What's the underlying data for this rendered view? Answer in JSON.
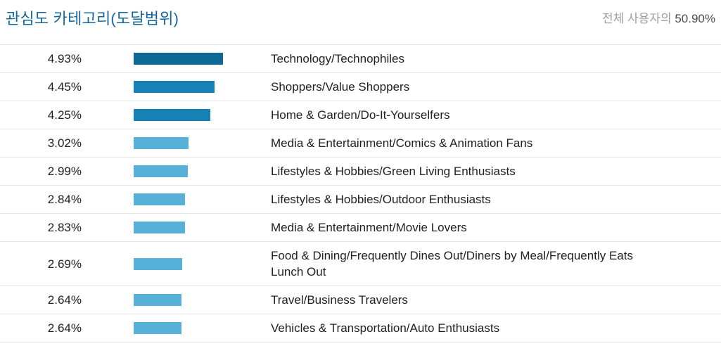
{
  "header": {
    "title": "관심도 카테고리(도달범위)",
    "reach_prefix": "전체 사용자의",
    "reach_value": "50.90%"
  },
  "colors": {
    "title_blue": "#15679e",
    "reach_prefix_gray": "#9e9e9e",
    "reach_value_gray": "#4d4d4d",
    "row_text": "#212121",
    "divider": "#e6e6e6",
    "bar_dark": "#0e6a94",
    "bar_medium": "#1681b4",
    "bar_light": "#56b0d7"
  },
  "chart_data": {
    "type": "bar",
    "orientation": "horizontal",
    "title": "관심도 카테고리(도달범위)",
    "subtitle_label": "전체 사용자의",
    "subtitle_value": "50.90%",
    "legend": "none",
    "grid": false,
    "value_label_position": "left-of-bar",
    "category_label_position": "right-of-bar",
    "xlim": [
      0,
      4.93
    ],
    "categories": [
      "Technology/Technophiles",
      "Shoppers/Value Shoppers",
      "Home & Garden/Do-It-Yourselfers",
      "Media & Entertainment/Comics & Animation Fans",
      "Lifestyles & Hobbies/Green Living Enthusiasts",
      "Lifestyles & Hobbies/Outdoor Enthusiasts",
      "Media & Entertainment/Movie Lovers",
      "Food & Dining/Frequently Dines Out/Diners by Meal/Frequently Eats Lunch Out",
      "Travel/Business Travelers",
      "Vehicles & Transportation/Auto Enthusiasts"
    ],
    "values": [
      4.93,
      4.45,
      4.25,
      3.02,
      2.99,
      2.84,
      2.83,
      2.69,
      2.64,
      2.64
    ],
    "value_labels": [
      "4.93%",
      "4.45%",
      "4.25%",
      "3.02%",
      "2.99%",
      "2.84%",
      "2.83%",
      "2.69%",
      "2.64%",
      "2.64%"
    ],
    "bar_colors": [
      "#0e6a94",
      "#1681b4",
      "#1681b4",
      "#56b0d7",
      "#56b0d7",
      "#56b0d7",
      "#56b0d7",
      "#56b0d7",
      "#56b0d7",
      "#56b0d7"
    ]
  }
}
